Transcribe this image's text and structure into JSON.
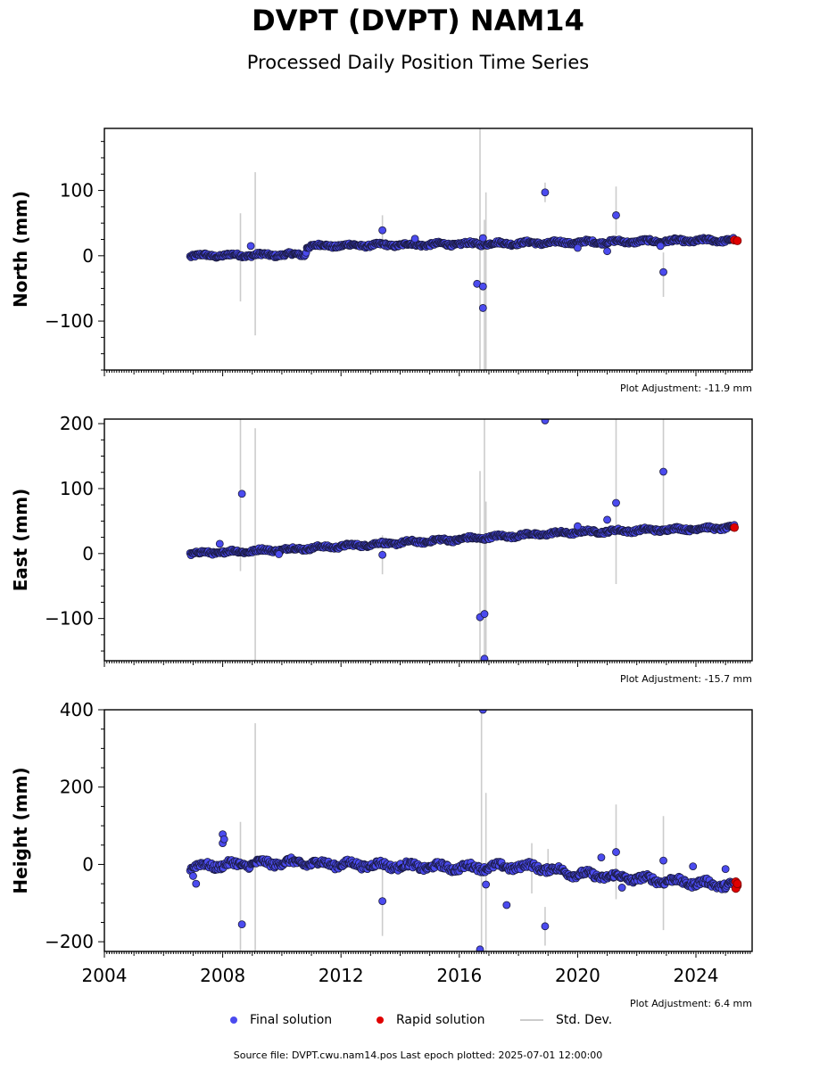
{
  "title": "DVPT (DVPT) NAM14",
  "subtitle": "Processed Daily Position Time Series",
  "footer": "Source file: DVPT.cwu.nam14.pos  Last epoch plotted: 2025-07-01 12:00:00",
  "legend": [
    {
      "label": "Final solution",
      "color": "#4b4bef",
      "kind": "marker"
    },
    {
      "label": "Rapid solution",
      "color": "#e00000",
      "kind": "marker"
    },
    {
      "label": "Std. Dev.",
      "color": "#cccccc",
      "kind": "line"
    }
  ],
  "colors": {
    "final": "#4b4bef",
    "rapid": "#e00000",
    "stddev": "#cccccc",
    "edge": "#1a1a40"
  },
  "chart_data": [
    {
      "type": "scatter",
      "ylabel": "North (mm)",
      "adjustment": "Plot Adjustment: -11.9 mm",
      "xlim": [
        2004,
        2025.9
      ],
      "ylim": [
        -175,
        195
      ],
      "yticks": [
        -100,
        0,
        100
      ],
      "xticks": [
        2004,
        2008,
        2012,
        2016,
        2020,
        2024
      ],
      "show_xticklabels": false,
      "trend": [
        [
          2006.9,
          0
        ],
        [
          2010.8,
          2
        ],
        [
          2010.85,
          15
        ],
        [
          2016.0,
          18
        ],
        [
          2025.3,
          24
        ]
      ],
      "noise": 3,
      "series": [
        {
          "name": "Final solution",
          "points": [
            [
              2013.4,
              39
            ],
            [
              2014.5,
              26
            ],
            [
              2016.6,
              -43
            ],
            [
              2016.8,
              -47
            ],
            [
              2016.8,
              -80
            ],
            [
              2016.8,
              27
            ],
            [
              2018.9,
              97
            ],
            [
              2020.0,
              12
            ],
            [
              2021.3,
              62
            ],
            [
              2021.0,
              7
            ],
            [
              2022.9,
              -25
            ],
            [
              2008.95,
              15
            ],
            [
              2022.8,
              15
            ]
          ]
        },
        {
          "name": "Rapid solution",
          "points": [
            [
              2025.3,
              24
            ],
            [
              2025.4,
              23
            ]
          ]
        }
      ],
      "stddev": [
        [
          2008.6,
          -70,
          65
        ],
        [
          2009.1,
          -122,
          128
        ],
        [
          2013.4,
          20,
          62
        ],
        [
          2016.7,
          -175,
          195
        ],
        [
          2016.9,
          -175,
          97
        ],
        [
          2016.85,
          -175,
          55
        ],
        [
          2018.9,
          82,
          112
        ],
        [
          2021.3,
          32,
          106
        ],
        [
          2022.9,
          -63,
          5
        ]
      ]
    },
    {
      "type": "scatter",
      "ylabel": "East (mm)",
      "adjustment": "Plot Adjustment: -15.7 mm",
      "xlim": [
        2004,
        2025.9
      ],
      "ylim": [
        -165,
        207
      ],
      "yticks": [
        -100,
        0,
        100,
        200
      ],
      "xticks": [
        2004,
        2008,
        2012,
        2016,
        2020,
        2024
      ],
      "show_xticklabels": false,
      "trend": [
        [
          2006.9,
          0
        ],
        [
          2010.0,
          6
        ],
        [
          2016.0,
          22
        ],
        [
          2018.0,
          28
        ],
        [
          2020.0,
          33
        ],
        [
          2025.3,
          40
        ]
      ],
      "noise": 3,
      "series": [
        {
          "name": "Final solution",
          "points": [
            [
              2008.65,
              92
            ],
            [
              2013.4,
              -2
            ],
            [
              2016.7,
              -98
            ],
            [
              2016.85,
              -93
            ],
            [
              2016.85,
              -162
            ],
            [
              2018.9,
              205
            ],
            [
              2020.0,
              42
            ],
            [
              2021.0,
              52
            ],
            [
              2021.3,
              78
            ],
            [
              2022.9,
              126
            ],
            [
              2007.9,
              15
            ],
            [
              2009.9,
              -1
            ]
          ]
        },
        {
          "name": "Rapid solution",
          "points": [
            [
              2025.3,
              40
            ]
          ]
        }
      ],
      "stddev": [
        [
          2008.6,
          -27,
          207
        ],
        [
          2009.1,
          -165,
          193
        ],
        [
          2013.4,
          -32,
          28
        ],
        [
          2016.7,
          -165,
          127
        ],
        [
          2016.85,
          -165,
          207
        ],
        [
          2016.9,
          -165,
          80
        ],
        [
          2021.3,
          -47,
          207
        ],
        [
          2022.9,
          40,
          207
        ]
      ]
    },
    {
      "type": "scatter",
      "ylabel": "Height (mm)",
      "adjustment": "Plot Adjustment: 6.4 mm",
      "xlim": [
        2004,
        2025.9
      ],
      "ylim": [
        -225,
        400
      ],
      "yticks": [
        -200,
        0,
        200,
        400
      ],
      "xticks": [
        2004,
        2008,
        2012,
        2016,
        2020,
        2024
      ],
      "show_xticklabels": true,
      "trend": [
        [
          2006.9,
          -5
        ],
        [
          2010.0,
          5
        ],
        [
          2016.0,
          -8
        ],
        [
          2018.5,
          -5
        ],
        [
          2020.0,
          -25
        ],
        [
          2025.3,
          -55
        ]
      ],
      "noise": 10,
      "series": [
        {
          "name": "Final solution",
          "points": [
            [
              2007.1,
              -50
            ],
            [
              2007.0,
              -30
            ],
            [
              2008.0,
              78
            ],
            [
              2008.0,
              55
            ],
            [
              2008.05,
              65
            ],
            [
              2008.65,
              -155
            ],
            [
              2013.4,
              -95
            ],
            [
              2016.7,
              -220
            ],
            [
              2016.8,
              400
            ],
            [
              2016.9,
              -52
            ],
            [
              2017.6,
              -105
            ],
            [
              2018.9,
              -160
            ],
            [
              2020.8,
              18
            ],
            [
              2021.3,
              32
            ],
            [
              2022.9,
              10
            ],
            [
              2021.5,
              -60
            ],
            [
              2023.9,
              -5
            ],
            [
              2025.0,
              -12
            ]
          ]
        },
        {
          "name": "Rapid solution",
          "points": [
            [
              2025.35,
              -45
            ],
            [
              2025.4,
              -55
            ],
            [
              2025.35,
              -62
            ],
            [
              2025.4,
              -50
            ]
          ]
        }
      ],
      "stddev": [
        [
          2008.6,
          -225,
          110
        ],
        [
          2009.1,
          -225,
          365
        ],
        [
          2013.4,
          -185,
          -5
        ],
        [
          2016.75,
          -225,
          400
        ],
        [
          2016.9,
          -225,
          185
        ],
        [
          2018.9,
          -210,
          -110
        ],
        [
          2021.3,
          -90,
          155
        ],
        [
          2022.9,
          -170,
          125
        ],
        [
          2019.0,
          -30,
          40
        ],
        [
          2018.45,
          -75,
          55
        ]
      ]
    }
  ]
}
